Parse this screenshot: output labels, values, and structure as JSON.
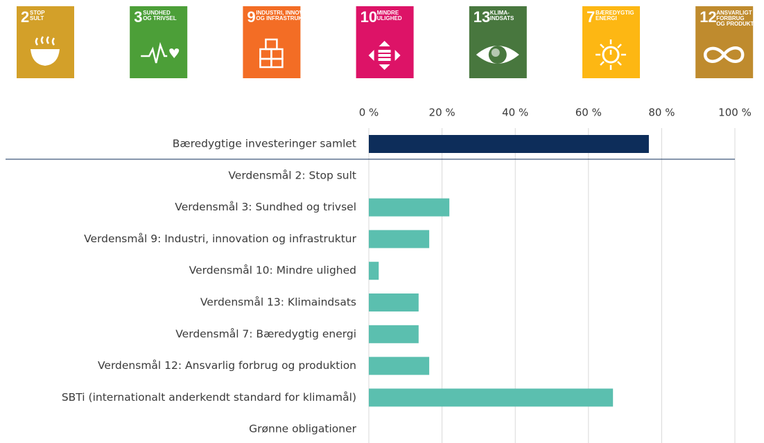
{
  "icons": [
    {
      "number": "2",
      "lines": [
        "STOP",
        "SULT"
      ],
      "color": "#d3a029"
    },
    {
      "number": "3",
      "lines": [
        "SUNDHED",
        "OG TRIVSEL"
      ],
      "color": "#4c9f38"
    },
    {
      "number": "9",
      "lines": [
        "INDUSTRI, INNOVATION",
        "OG INFRASTRUKTUR"
      ],
      "color": "#f36d25"
    },
    {
      "number": "10",
      "lines": [
        "MINDRE",
        "ULIGHED"
      ],
      "color": "#dd1367"
    },
    {
      "number": "13",
      "lines": [
        "KLIMA-",
        "INDSATS"
      ],
      "color": "#48773e"
    },
    {
      "number": "7",
      "lines": [
        "BÆREDYGTIG",
        "ENERGI"
      ],
      "color": "#fdb713"
    },
    {
      "number": "12",
      "lines": [
        "ANSVARLIGT",
        "FORBRUG",
        "OG PRODUKTION"
      ],
      "color": "#bf8b2e"
    }
  ],
  "chart_data": {
    "type": "bar",
    "orientation": "horizontal",
    "categories": [
      "Bæredygtige investeringer samlet",
      "Verdensmål 2: Stop sult",
      "Verdensmål 3: Sundhed og trivsel",
      "Verdensmål 9: Industri, innovation og infrastruktur",
      "Verdensmål 10: Mindre ulighed",
      "Verdensmål 13: Klimaindsats",
      "Verdensmål 7: Bæredygtig energi",
      "Verdensmål 12: Ansvarlig forbrug og produktion",
      "SBTi (internationalt anderkendt standard for klimamål)",
      "Grønne obligationer"
    ],
    "values": [
      76.5,
      0,
      22,
      16.5,
      2.7,
      13.6,
      13.6,
      16.5,
      66.7,
      0
    ],
    "colors": [
      "#0d2d5a",
      "#5bbfaf",
      "#5bbfaf",
      "#5bbfaf",
      "#5bbfaf",
      "#5bbfaf",
      "#5bbfaf",
      "#5bbfaf",
      "#5bbfaf",
      "#5bbfaf"
    ],
    "xlim": [
      0,
      100
    ],
    "xticks": [
      {
        "value": 0,
        "label": "0 %"
      },
      {
        "value": 20,
        "label": "20 %"
      },
      {
        "value": 40,
        "label": "40 %"
      },
      {
        "value": 60,
        "label": "60 %"
      },
      {
        "value": 80,
        "label": "80 %"
      },
      {
        "value": 100,
        "label": "100 %"
      }
    ],
    "grid": true
  }
}
